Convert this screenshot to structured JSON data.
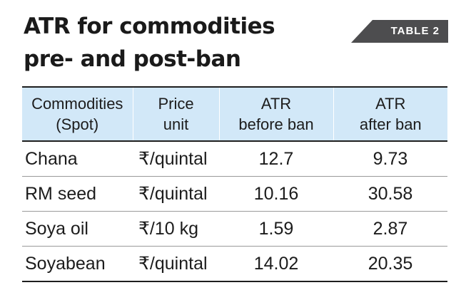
{
  "title": {
    "line1": "ATR for commodities",
    "line2": "pre- and post-ban"
  },
  "badge": "TABLE 2",
  "table": {
    "headers": [
      {
        "line1": "Commodities",
        "line2": "(Spot)"
      },
      {
        "line1": "Price",
        "line2": "unit"
      },
      {
        "line1": "ATR",
        "line2": "before ban"
      },
      {
        "line1": "ATR",
        "line2": "after ban"
      }
    ],
    "rows": [
      {
        "commodity": "Chana",
        "unit": "₹/quintal",
        "before": "12.7",
        "after": "9.73"
      },
      {
        "commodity": "RM seed",
        "unit": "₹/quintal",
        "before": "10.16",
        "after": "30.58"
      },
      {
        "commodity": "Soya oil",
        "unit": "₹/10 kg",
        "before": "1.59",
        "after": "2.87"
      },
      {
        "commodity": "Soyabean",
        "unit": "₹/quintal",
        "before": "14.02",
        "after": "20.35"
      }
    ]
  },
  "colors": {
    "header_background": "#d2e8f8",
    "badge_background": "#4d4d4f",
    "text": "#1c1c1c"
  }
}
